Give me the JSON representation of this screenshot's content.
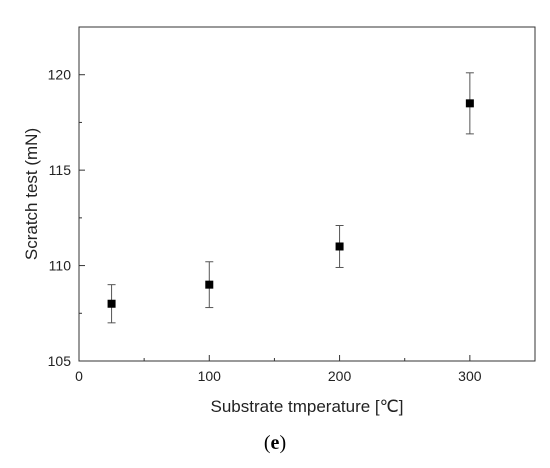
{
  "chart_data": {
    "type": "scatter",
    "title": "",
    "xlabel": "Substrate tmperature [℃]",
    "ylabel": "Scratch test (mN)",
    "xlim": [
      0,
      350
    ],
    "ylim": [
      105,
      122.5
    ],
    "xticks": [
      0,
      100,
      200,
      300
    ],
    "yticks": [
      105,
      110,
      115,
      120
    ],
    "grid": false,
    "series": [
      {
        "marker": "square",
        "color": "#000000",
        "x": [
          25,
          100,
          200,
          300
        ],
        "y": [
          108.0,
          109.0,
          111.0,
          118.5
        ],
        "err_low": [
          107.0,
          107.8,
          109.9,
          116.9
        ],
        "err_high": [
          109.0,
          110.2,
          112.1,
          120.1
        ]
      }
    ]
  },
  "panel": {
    "open": "(",
    "letter": "e",
    "close": ")"
  }
}
